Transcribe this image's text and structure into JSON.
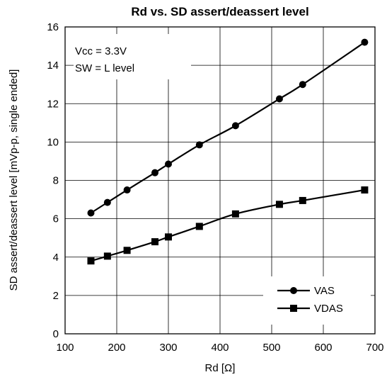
{
  "chart_data": {
    "type": "line",
    "title": "Rd vs. SD assert/deassert level",
    "xlabel": "Rd [Ω]",
    "ylabel": "SD assert/deassert level [mVp-p, single ended]",
    "xlim": [
      100,
      700
    ],
    "ylim": [
      0,
      16
    ],
    "xticks": [
      "100",
      "200",
      "300",
      "400",
      "500",
      "600",
      "700"
    ],
    "yticks": [
      "0",
      "2",
      "4",
      "6",
      "8",
      "10",
      "12",
      "14",
      "16"
    ],
    "xtick_values": [
      100,
      200,
      300,
      400,
      500,
      600,
      700
    ],
    "ytick_values": [
      0,
      2,
      4,
      6,
      8,
      10,
      12,
      14,
      16
    ],
    "grid": true,
    "legend_position": "bottom-right",
    "annotations": [
      "Vcc = 3.3V",
      "SW = L level"
    ],
    "series": [
      {
        "name": "VAS",
        "marker": "circle",
        "x": [
          150,
          182,
          220,
          274,
          300,
          360,
          430,
          515,
          560,
          680
        ],
        "y": [
          6.3,
          6.85,
          7.5,
          8.4,
          8.85,
          9.85,
          10.85,
          12.25,
          13.0,
          15.2
        ]
      },
      {
        "name": "VDAS",
        "marker": "square",
        "x": [
          150,
          182,
          220,
          274,
          300,
          360,
          430,
          515,
          560,
          680
        ],
        "y": [
          3.8,
          4.05,
          4.35,
          4.8,
          5.05,
          5.6,
          6.25,
          6.75,
          6.95,
          7.5
        ]
      }
    ]
  }
}
